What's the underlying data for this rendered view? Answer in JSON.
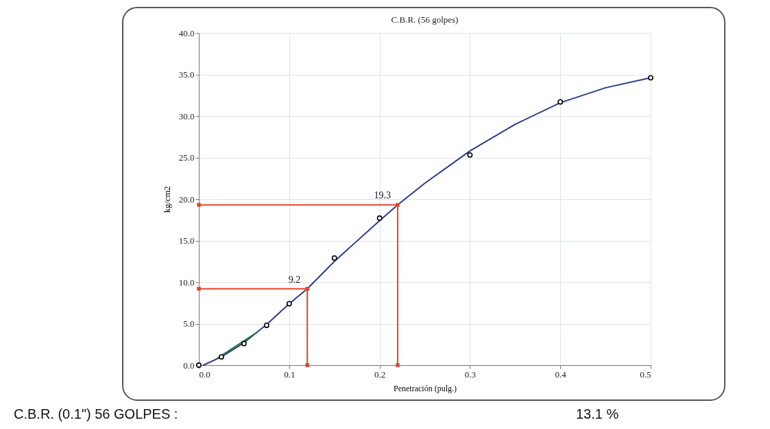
{
  "chart_data": {
    "type": "scatter",
    "title": "C.B.R. (56 golpes)",
    "xlabel": "Penetración (pulg.)",
    "ylabel": "kg/cm2",
    "xlim": [
      0,
      0.5
    ],
    "ylim": [
      0,
      40
    ],
    "xticks": [
      {
        "value": 0,
        "label": "0.0"
      },
      {
        "value": 0.1,
        "label": "0.1"
      },
      {
        "value": 0.2,
        "label": "0.2"
      },
      {
        "value": 0.3,
        "label": "0.3"
      },
      {
        "value": 0.4,
        "label": "0.4"
      },
      {
        "value": 0.5,
        "label": "0.5"
      }
    ],
    "yticks": [
      {
        "value": 0,
        "label": "0.0"
      },
      {
        "value": 5,
        "label": "5.0"
      },
      {
        "value": 10,
        "label": "10.0"
      },
      {
        "value": 15,
        "label": "15.0"
      },
      {
        "value": 20,
        "label": "20.0"
      },
      {
        "value": 25,
        "label": "25.0"
      },
      {
        "value": 30,
        "label": "30.0"
      },
      {
        "value": 35,
        "label": "35.0"
      },
      {
        "value": 40,
        "label": "40.0"
      }
    ],
    "grid": true,
    "series": [
      {
        "type": "line",
        "color": "#2b3a8c",
        "x": [
          0.005,
          0.025,
          0.05,
          0.075,
          0.1,
          0.12,
          0.15,
          0.2,
          0.22,
          0.25,
          0.3,
          0.35,
          0.4,
          0.45,
          0.5
        ],
        "values": [
          0,
          1.0,
          2.7,
          4.9,
          7.4,
          9.2,
          12.5,
          17.4,
          19.3,
          21.9,
          25.8,
          29.0,
          31.6,
          33.4,
          34.6
        ]
      },
      {
        "type": "line",
        "color": "#1f7a3a",
        "x": [
          0.02,
          0.065
        ],
        "values": [
          0.8,
          4.0
        ]
      },
      {
        "type": "line",
        "color": "#e0452a",
        "marker": "square",
        "x": [
          0,
          0.12,
          0.12
        ],
        "values": [
          9.2,
          9.2,
          0
        ]
      },
      {
        "type": "line",
        "color": "#e0452a",
        "marker": "square",
        "x": [
          0,
          0.22,
          0.22
        ],
        "values": [
          19.3,
          19.3,
          0
        ]
      },
      {
        "marker": "circle",
        "color": "#000000",
        "x": [
          0,
          0.025,
          0.05,
          0.075,
          0.1,
          0.15,
          0.2,
          0.3,
          0.4,
          0.5
        ],
        "values": [
          0,
          1.0,
          2.6,
          4.8,
          7.4,
          12.9,
          17.7,
          25.3,
          31.7,
          34.6
        ]
      }
    ],
    "annotations": [
      {
        "text": "9.2",
        "x": 0.12,
        "y": 9.2
      },
      {
        "text": "19.3",
        "x": 0.22,
        "y": 19.3
      },
      "C.B.R. (0.1\") 56 GOLPES :",
      "13.1 %"
    ]
  }
}
